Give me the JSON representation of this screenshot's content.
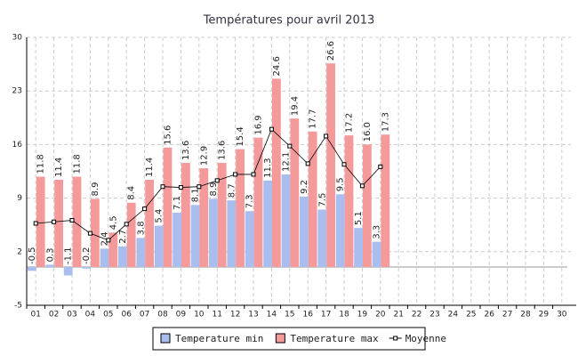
{
  "chart_data": {
    "type": "bar",
    "title": "Températures pour avril 2013",
    "categories": [
      "01",
      "02",
      "03",
      "04",
      "05",
      "06",
      "07",
      "08",
      "09",
      "10",
      "11",
      "12",
      "13",
      "14",
      "15",
      "16",
      "17",
      "18",
      "19",
      "20",
      "21",
      "22",
      "23",
      "24",
      "25",
      "26",
      "27",
      "28",
      "29",
      "30"
    ],
    "series": [
      {
        "name": "Temperature min",
        "color": "#a9bdef",
        "type": "bar",
        "values": [
          -0.5,
          0.3,
          -1.1,
          -0.2,
          2.4,
          2.7,
          3.8,
          5.4,
          7.1,
          8.1,
          8.9,
          8.7,
          7.3,
          11.3,
          12.1,
          9.2,
          7.5,
          9.5,
          5.1,
          3.3,
          null,
          null,
          null,
          null,
          null,
          null,
          null,
          null,
          null,
          null
        ]
      },
      {
        "name": "Temperature max",
        "color": "#f59a9b",
        "type": "bar",
        "values": [
          11.8,
          11.4,
          11.8,
          8.9,
          4.5,
          8.4,
          11.4,
          15.6,
          13.6,
          12.9,
          13.6,
          15.4,
          16.9,
          24.6,
          19.4,
          17.7,
          26.6,
          17.2,
          16.0,
          17.3,
          null,
          null,
          null,
          null,
          null,
          null,
          null,
          null,
          null,
          null
        ],
        "value_labels": [
          "11.8",
          "11.4",
          "11.8",
          "8.9",
          "4.5",
          "8.4",
          "11.4",
          "15.6",
          "13.6",
          "12.9",
          "13.6",
          "15.4",
          "16.9",
          "24.6",
          "19.4",
          "17.7",
          "26.6",
          "17.2",
          "16.0",
          "17.3",
          null,
          null,
          null,
          null,
          null,
          null,
          null,
          null,
          null,
          null
        ]
      },
      {
        "name": "Moyenne",
        "color": "#000000",
        "type": "line",
        "values": [
          5.7,
          5.9,
          6.1,
          4.4,
          3.5,
          5.6,
          7.6,
          10.5,
          10.4,
          10.5,
          11.3,
          12.1,
          12.1,
          18.0,
          15.8,
          13.5,
          17.1,
          13.4,
          10.6,
          13.1,
          null,
          null,
          null,
          null,
          null,
          null,
          null,
          null,
          null,
          null
        ]
      }
    ],
    "ylim": [
      -5,
      30
    ],
    "yticks": [
      -5,
      2,
      9,
      16,
      23,
      30
    ],
    "grid": true,
    "legend": "bottom"
  }
}
